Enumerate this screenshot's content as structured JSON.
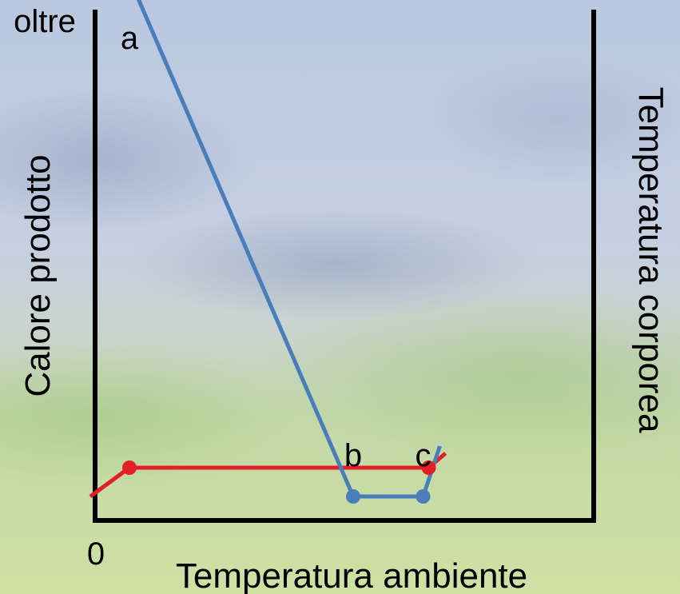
{
  "chart_data": {
    "type": "line",
    "top_left_text": "oltre",
    "xlabel": "Temperatura ambiente",
    "ylabel_left": "Calore prodotto",
    "ylabel_right": "Temperatura corporea",
    "x_origin_label": "0",
    "grid": false,
    "series": [
      {
        "color": "#e41e26",
        "x": [
          -0.3,
          0.4,
          5.75,
          6.05
        ],
        "y": [
          0.6,
          1.0,
          1.0,
          1.2
        ],
        "markers": [
          1,
          2
        ]
      },
      {
        "color": "#4a7ebb",
        "x": [
          0.4,
          4.4,
          5.65,
          5.95
        ],
        "y": [
          7.8,
          0.6,
          0.6,
          1.3
        ],
        "markers": [
          0,
          1,
          2
        ]
      }
    ],
    "point_labels": [
      {
        "text": "a",
        "x": 0.4,
        "y": 7.8
      },
      {
        "text": "b",
        "x": 4.4,
        "y": 0.6
      },
      {
        "text": "c",
        "x": 5.65,
        "y": 0.6
      }
    ]
  }
}
